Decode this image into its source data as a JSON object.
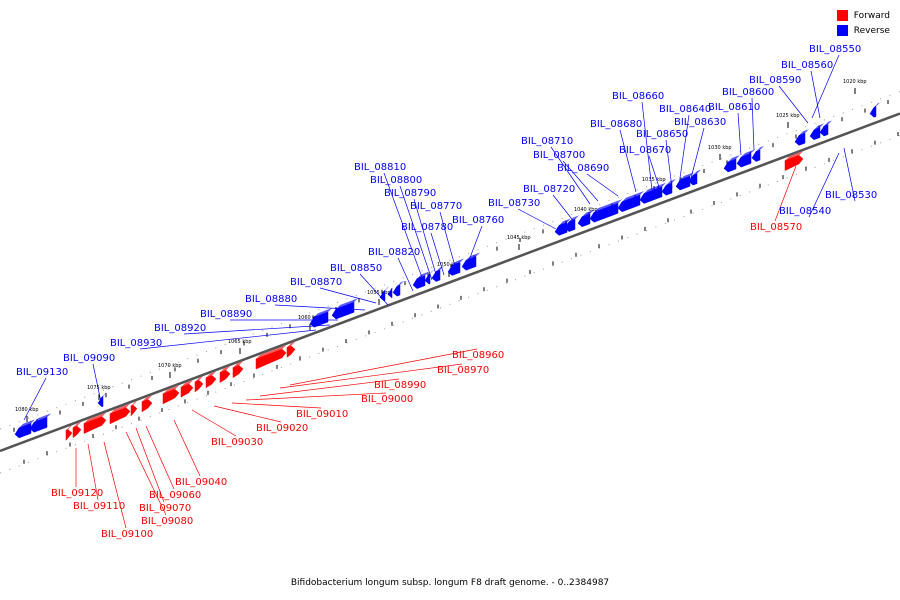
{
  "legend": {
    "items": [
      {
        "label": "Forward",
        "color": "#ff0000"
      },
      {
        "label": "Reverse",
        "color": "#0000ff"
      }
    ]
  },
  "caption": "Bifidobacterium longum subsp. longum F8 draft genome. - 0..2384987",
  "colors": {
    "forward": "#ff0000",
    "reverse": "#0000ff",
    "backbone": "#555555"
  },
  "tick_labels": [
    "1020 kbp",
    "1025 kbp",
    "1030 kbp",
    "1035 kbp",
    "1040 kbp",
    "1045 kbp",
    "1050 kbp",
    "1055 kbp",
    "1060 kbp",
    "1065 kbp",
    "1070 kbp",
    "1075 kbp",
    "1080 kbp"
  ],
  "genes_reverse": [
    "BIL_08550",
    "BIL_08560",
    "BIL_08590",
    "BIL_08600",
    "BIL_08610",
    "BIL_08630",
    "BIL_08640",
    "BIL_08650",
    "BIL_08660",
    "BIL_08670",
    "BIL_08680",
    "BIL_08690",
    "BIL_08700",
    "BIL_08710",
    "BIL_08720",
    "BIL_08730",
    "BIL_08760",
    "BIL_08770",
    "BIL_08780",
    "BIL_08790",
    "BIL_08800",
    "BIL_08810",
    "BIL_08820",
    "BIL_08850",
    "BIL_08870",
    "BIL_08880",
    "BIL_08890",
    "BIL_08920",
    "BIL_08930",
    "BIL_09090",
    "BIL_09130",
    "BIL_08530",
    "BIL_08540"
  ],
  "genes_forward": [
    "BIL_08570",
    "BIL_08960",
    "BIL_08970",
    "BIL_08990",
    "BIL_09000",
    "BIL_09010",
    "BIL_09020",
    "BIL_09030",
    "BIL_09040",
    "BIL_09060",
    "BIL_09070",
    "BIL_09080",
    "BIL_09100",
    "BIL_09110",
    "BIL_09120"
  ]
}
